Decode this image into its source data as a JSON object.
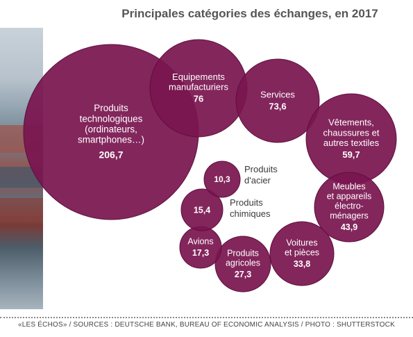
{
  "title": "Principales catégories des échanges, en 2017",
  "footer": "«LES ÉCHOS» / SOURCES : DEUTSCHE BANK, BUREAU OF ECONOMIC ANALYSIS / PHOTO : SHUTTERSTOCK",
  "colors": {
    "bubble": "#7a1550",
    "bubble_text": "#ffffff",
    "label_text": "#3a3a3a"
  },
  "chart_data": {
    "type": "bubble",
    "title": "Principales catégories des échanges, en 2017",
    "series": [
      {
        "label": "Produits technologiques (ordinateurs, smartphones...)",
        "value": 206.7,
        "value_label": "206,7",
        "label_inside": true
      },
      {
        "label": "Equipements manufacturiers",
        "value": 76,
        "value_label": "76",
        "label_inside": true
      },
      {
        "label": "Services",
        "value": 73.6,
        "value_label": "73,6",
        "label_inside": true
      },
      {
        "label": "Vêtements, chaussures et autres textiles",
        "value": 59.7,
        "value_label": "59,7",
        "label_inside": true
      },
      {
        "label": "Meubles et appareils électro-ménagers",
        "value": 43.9,
        "value_label": "43,9",
        "label_inside": true
      },
      {
        "label": "Voitures et pièces",
        "value": 33.8,
        "value_label": "33,8",
        "label_inside": true
      },
      {
        "label": "Produits agricoles",
        "value": 27.3,
        "value_label": "27,3",
        "label_inside": true
      },
      {
        "label": "Avions",
        "value": 17.3,
        "value_label": "17,3",
        "label_inside": true
      },
      {
        "label": "Produits chimiques",
        "value": 15.4,
        "value_label": "15,4",
        "label_inside": false
      },
      {
        "label": "Produits d'acier",
        "value": 10.3,
        "value_label": "10,3",
        "label_inside": false
      }
    ]
  }
}
